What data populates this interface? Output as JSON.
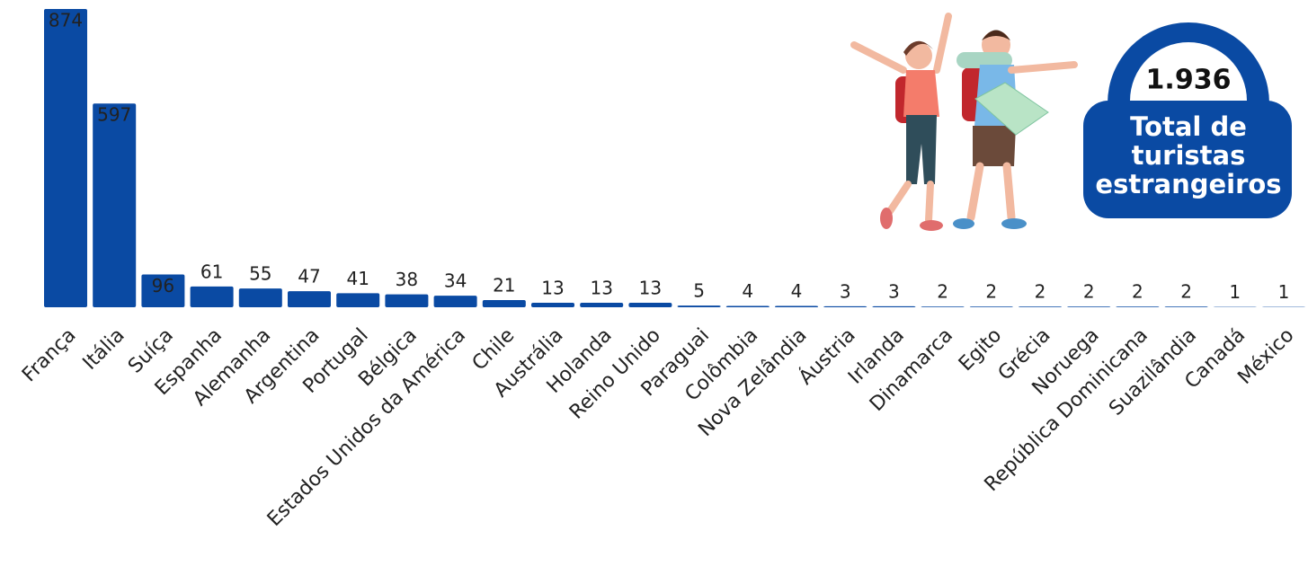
{
  "chart_data": {
    "type": "bar",
    "categories": [
      "França",
      "Itália",
      "Suíça",
      "Espanha",
      "Alemanha",
      "Argentina",
      "Portugal",
      "Bélgica",
      "Estados Unidos da América",
      "Chile",
      "Austrália",
      "Holanda",
      "Reino Unido",
      "Paraguai",
      "Colômbia",
      "Nova Zelândia",
      "Áustria",
      "Irlanda",
      "Dinamarca",
      "Egito",
      "Grécia",
      "Noruega",
      "República Dominicana",
      "Suazilândia",
      "Canadá",
      "México"
    ],
    "values": [
      874,
      597,
      96,
      61,
      55,
      47,
      41,
      38,
      34,
      21,
      13,
      13,
      13,
      5,
      4,
      4,
      3,
      3,
      2,
      2,
      2,
      2,
      2,
      2,
      1,
      1
    ],
    "color": "#0a4aa3"
  },
  "badge": {
    "total": "1.936",
    "label_lines": [
      "Total de",
      "turistas",
      "estrangeiros"
    ]
  }
}
